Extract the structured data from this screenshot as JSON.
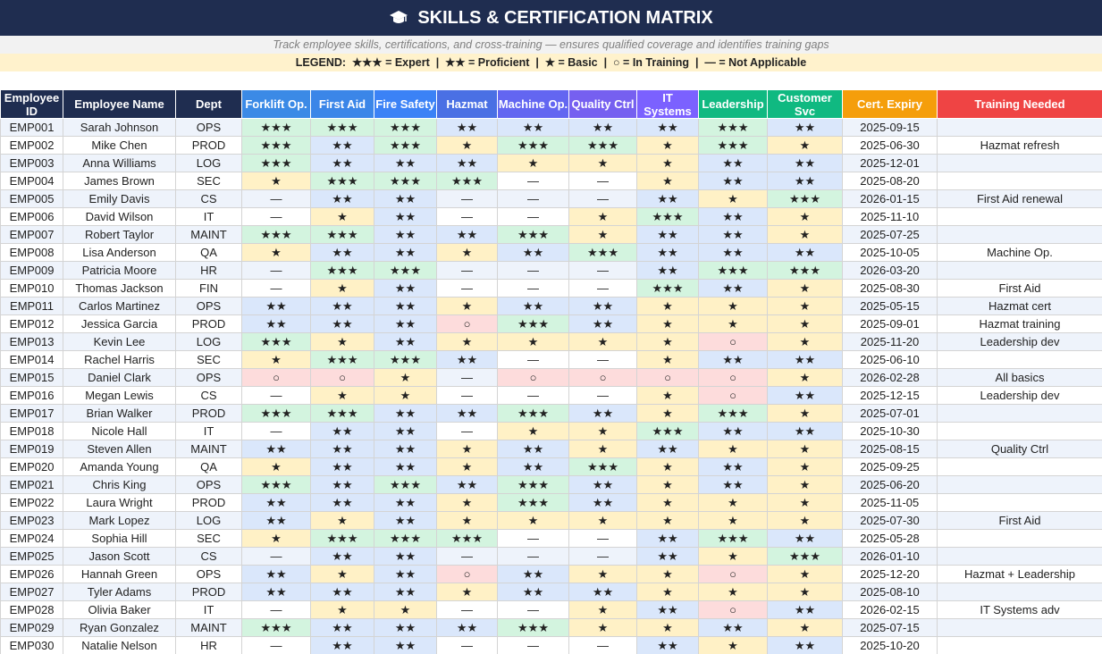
{
  "header": {
    "title": "SKILLS & CERTIFICATION MATRIX",
    "subtitle": "Track employee skills, certifications, and cross-training — ensures qualified coverage and identifies training gaps",
    "legend": "LEGEND:  ★★★ = Expert  |  ★★ = Proficient  |  ★ = Basic  |  ○ = In Training  |  — = Not Applicable"
  },
  "table": {
    "columns": [
      "Employee ID",
      "Employee Name",
      "Dept",
      "Forklift Op.",
      "First Aid",
      "Fire Safety",
      "Hazmat",
      "Machine Op.",
      "Quality Ctrl",
      "IT Systems",
      "Leadership",
      "Customer Svc",
      "Cert. Expiry",
      "Training Needed"
    ],
    "rows": [
      [
        "EMP001",
        "Sarah Johnson",
        "OPS",
        "★★★",
        "★★★",
        "★★★",
        "★★",
        "★★",
        "★★",
        "★★",
        "★★★",
        "★★",
        "2025-09-15",
        null
      ],
      [
        "EMP002",
        "Mike Chen",
        "PROD",
        "★★★",
        "★★",
        "★★★",
        "★",
        "★★★",
        "★★★",
        "★",
        "★★★",
        "★",
        "2025-06-30",
        "Hazmat refresh"
      ],
      [
        "EMP003",
        "Anna Williams",
        "LOG",
        "★★★",
        "★★",
        "★★",
        "★★",
        "★",
        "★",
        "★",
        "★★",
        "★★",
        "2025-12-01",
        null
      ],
      [
        "EMP004",
        "James Brown",
        "SEC",
        "★",
        "★★★",
        "★★★",
        "★★★",
        "—",
        "—",
        "★",
        "★★",
        "★★",
        "2025-08-20",
        null
      ],
      [
        "EMP005",
        "Emily Davis",
        "CS",
        "—",
        "★★",
        "★★",
        "—",
        "—",
        "—",
        "★★",
        "★",
        "★★★",
        "2026-01-15",
        "First Aid renewal"
      ],
      [
        "EMP006",
        "David Wilson",
        "IT",
        "—",
        "★",
        "★★",
        "—",
        "—",
        "★",
        "★★★",
        "★★",
        "★",
        "2025-11-10",
        null
      ],
      [
        "EMP007",
        "Robert Taylor",
        "MAINT",
        "★★★",
        "★★★",
        "★★",
        "★★",
        "★★★",
        "★",
        "★★",
        "★★",
        "★",
        "2025-07-25",
        null
      ],
      [
        "EMP008",
        "Lisa Anderson",
        "QA",
        "★",
        "★★",
        "★★",
        "★",
        "★★",
        "★★★",
        "★★",
        "★★",
        "★★",
        "2025-10-05",
        "Machine Op."
      ],
      [
        "EMP009",
        "Patricia Moore",
        "HR",
        "—",
        "★★★",
        "★★★",
        "—",
        "—",
        "—",
        "★★",
        "★★★",
        "★★★",
        "2026-03-20",
        null
      ],
      [
        "EMP010",
        "Thomas Jackson",
        "FIN",
        "—",
        "★",
        "★★",
        "—",
        "—",
        "—",
        "★★★",
        "★★",
        "★",
        "2025-08-30",
        "First Aid"
      ],
      [
        "EMP011",
        "Carlos Martinez",
        "OPS",
        "★★",
        "★★",
        "★★",
        "★",
        "★★",
        "★★",
        "★",
        "★",
        "★",
        "2025-05-15",
        "Hazmat cert"
      ],
      [
        "EMP012",
        "Jessica Garcia",
        "PROD",
        "★★",
        "★★",
        "★★",
        "○",
        "★★★",
        "★★",
        "★",
        "★",
        "★",
        "2025-09-01",
        "Hazmat training"
      ],
      [
        "EMP013",
        "Kevin Lee",
        "LOG",
        "★★★",
        "★",
        "★★",
        "★",
        "★",
        "★",
        "★",
        "○",
        "★",
        "2025-11-20",
        "Leadership dev"
      ],
      [
        "EMP014",
        "Rachel Harris",
        "SEC",
        "★",
        "★★★",
        "★★★",
        "★★",
        "—",
        "—",
        "★",
        "★★",
        "★★",
        "2025-06-10",
        null
      ],
      [
        "EMP015",
        "Daniel Clark",
        "OPS",
        "○",
        "○",
        "★",
        "—",
        "○",
        "○",
        "○",
        "○",
        "★",
        "2026-02-28",
        "All basics"
      ],
      [
        "EMP016",
        "Megan Lewis",
        "CS",
        "—",
        "★",
        "★",
        "—",
        "—",
        "—",
        "★",
        "○",
        "★★",
        "2025-12-15",
        "Leadership dev"
      ],
      [
        "EMP017",
        "Brian Walker",
        "PROD",
        "★★★",
        "★★★",
        "★★",
        "★★",
        "★★★",
        "★★",
        "★",
        "★★★",
        "★",
        "2025-07-01",
        null
      ],
      [
        "EMP018",
        "Nicole Hall",
        "IT",
        "—",
        "★★",
        "★★",
        "—",
        "★",
        "★",
        "★★★",
        "★★",
        "★★",
        "2025-10-30",
        null
      ],
      [
        "EMP019",
        "Steven Allen",
        "MAINT",
        "★★",
        "★★",
        "★★",
        "★",
        "★★",
        "★",
        "★★",
        "★",
        "★",
        "2025-08-15",
        "Quality Ctrl"
      ],
      [
        "EMP020",
        "Amanda Young",
        "QA",
        "★",
        "★★",
        "★★",
        "★",
        "★★",
        "★★★",
        "★",
        "★★",
        "★",
        "2025-09-25",
        null
      ],
      [
        "EMP021",
        "Chris King",
        "OPS",
        "★★★",
        "★★",
        "★★★",
        "★★",
        "★★★",
        "★★",
        "★",
        "★★",
        "★",
        "2025-06-20",
        null
      ],
      [
        "EMP022",
        "Laura Wright",
        "PROD",
        "★★",
        "★★",
        "★★",
        "★",
        "★★★",
        "★★",
        "★",
        "★",
        "★",
        "2025-11-05",
        null
      ],
      [
        "EMP023",
        "Mark Lopez",
        "LOG",
        "★★",
        "★",
        "★★",
        "★",
        "★",
        "★",
        "★",
        "★",
        "★",
        "2025-07-30",
        "First Aid"
      ],
      [
        "EMP024",
        "Sophia Hill",
        "SEC",
        "★",
        "★★★",
        "★★★",
        "★★★",
        "—",
        "—",
        "★★",
        "★★★",
        "★★",
        "2025-05-28",
        null
      ],
      [
        "EMP025",
        "Jason Scott",
        "CS",
        "—",
        "★★",
        "★★",
        "—",
        "—",
        "—",
        "★★",
        "★",
        "★★★",
        "2026-01-10",
        null
      ],
      [
        "EMP026",
        "Hannah Green",
        "OPS",
        "★★",
        "★",
        "★★",
        "○",
        "★★",
        "★",
        "★",
        "○",
        "★",
        "2025-12-20",
        "Hazmat + Leadership"
      ],
      [
        "EMP027",
        "Tyler Adams",
        "PROD",
        "★★",
        "★★",
        "★★",
        "★",
        "★★",
        "★★",
        "★",
        "★",
        "★",
        "2025-08-10",
        null
      ],
      [
        "EMP028",
        "Olivia Baker",
        "IT",
        "—",
        "★",
        "★",
        "—",
        "—",
        "★",
        "★★",
        "○",
        "★★",
        "2026-02-15",
        "IT Systems adv"
      ],
      [
        "EMP029",
        "Ryan Gonzalez",
        "MAINT",
        "★★★",
        "★★",
        "★★",
        "★★",
        "★★★",
        "★",
        "★",
        "★★",
        "★",
        "2025-07-15",
        null
      ],
      [
        "EMP030",
        "Natalie Nelson",
        "HR",
        "—",
        "★★",
        "★★",
        "—",
        "—",
        "—",
        "★★",
        "★",
        "★★",
        "2025-10-20",
        null
      ]
    ]
  }
}
